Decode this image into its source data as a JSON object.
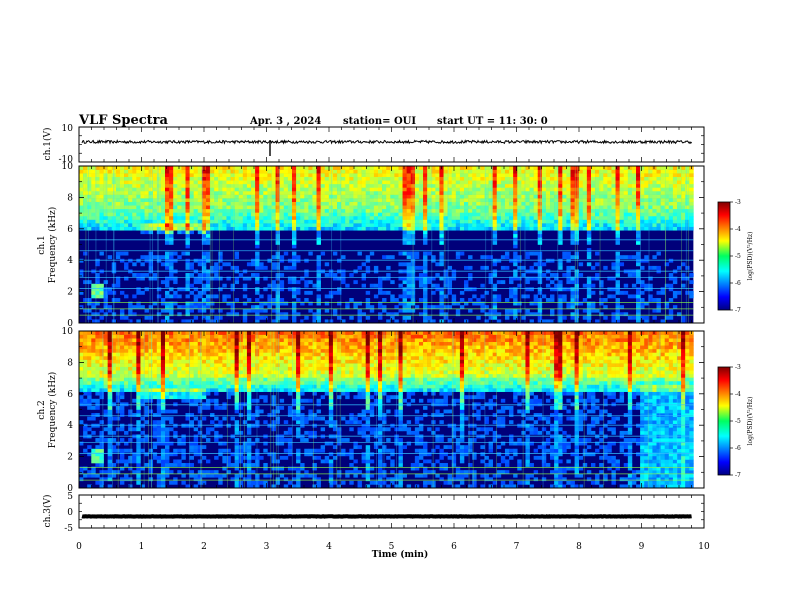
{
  "header": {
    "title": "VLF Spectra",
    "date": "Apr. 3 , 2024",
    "station": "station= OUI",
    "start": "start UT = 11: 30: 0"
  },
  "chart_data": [
    {
      "type": "line",
      "panel": "ch.1 waveform",
      "ylabel": "ch.1(V)",
      "yticks": [
        "10",
        "-10"
      ],
      "ylim": [
        -10,
        10
      ],
      "xlim": [
        0,
        10
      ],
      "trace_level": 1.5,
      "trace_color": "#000000"
    },
    {
      "type": "heatmap",
      "panel": "ch.1 spectrogram",
      "ylabel_line1": "ch.1",
      "ylabel_line2": "Frequency (kHz)",
      "yticks": [
        "0",
        "2",
        "4",
        "6",
        "8",
        "10"
      ],
      "ylim": [
        0,
        10
      ],
      "xlim": [
        0,
        9.83
      ],
      "colorbar": {
        "label": "log(PSD)(V²/Hz)",
        "ticks": [
          "-3",
          "-4",
          "-5",
          "-6",
          "-7"
        ],
        "range": [
          -7,
          -3
        ],
        "colormap": "jet"
      }
    },
    {
      "type": "heatmap",
      "panel": "ch.2 spectrogram",
      "ylabel_line1": "ch.2",
      "ylabel_line2": "Frequency (kHz)",
      "yticks": [
        "0",
        "2",
        "4",
        "6",
        "8",
        "10"
      ],
      "ylim": [
        0,
        10
      ],
      "xlim": [
        0,
        9.83
      ],
      "colorbar": {
        "label": "log(PSD)(V²/Hz)",
        "ticks": [
          "-3",
          "-4",
          "-5",
          "-6",
          "-7"
        ],
        "range": [
          -7,
          -3
        ],
        "colormap": "jet"
      }
    },
    {
      "type": "line",
      "panel": "ch.3 waveform",
      "ylabel": "ch.3(V)",
      "yticks": [
        "5",
        "0",
        "-5"
      ],
      "ylim": [
        -5,
        5
      ],
      "xlim": [
        0,
        10
      ],
      "trace_level": -1.5,
      "trace_color": "#000000"
    }
  ],
  "xaxis": {
    "label": "Time (min)",
    "ticks": [
      "0",
      "1",
      "2",
      "3",
      "4",
      "5",
      "6",
      "7",
      "8",
      "9",
      "10"
    ],
    "xlim": [
      0,
      10
    ]
  }
}
